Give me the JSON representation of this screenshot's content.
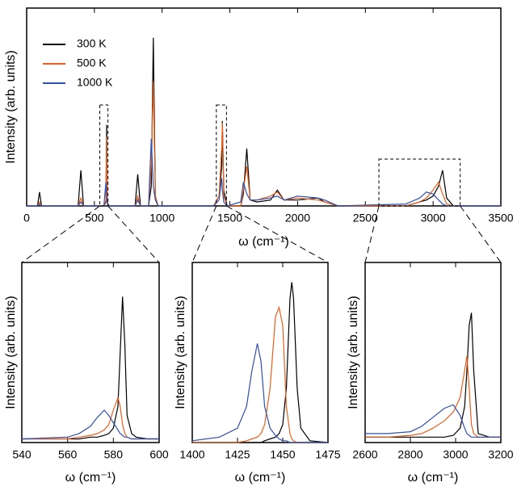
{
  "chart_data": [
    {
      "type": "line",
      "x_label": "ω (cm⁻¹)",
      "y_label": "Intensity (arb. units)",
      "legend": "upper left",
      "x": [
        0,
        80,
        95,
        110,
        380,
        400,
        420,
        570,
        585,
        590,
        595,
        610,
        800,
        820,
        840,
        900,
        920,
        935,
        950,
        970,
        1380,
        1420,
        1440,
        1445,
        1455,
        1480,
        1580,
        1600,
        1625,
        1650,
        1700,
        1800,
        1850,
        1900,
        2000,
        2150,
        2200,
        2300,
        2800,
        2900,
        2950,
        3000,
        3040,
        3070,
        3100,
        3150,
        3500
      ],
      "series": [
        {
          "name": "300 K",
          "color": "#000000",
          "values": [
            0,
            0,
            7,
            0,
            0,
            18,
            0,
            0,
            2,
            41,
            2,
            0,
            0,
            16,
            0,
            0,
            10,
            85,
            5,
            0,
            0,
            5,
            20,
            43,
            8,
            0,
            0,
            6,
            29,
            3,
            2,
            3,
            8,
            3,
            3,
            4,
            2,
            0,
            0,
            2,
            3,
            5,
            10,
            18,
            4,
            0,
            0
          ]
        },
        {
          "name": "500 K",
          "color": "#e8601c",
          "values": [
            0,
            0,
            2,
            0,
            0,
            4,
            0,
            0,
            3,
            35,
            2,
            0,
            0,
            5,
            0,
            0,
            20,
            63,
            5,
            0,
            0,
            5,
            30,
            42,
            5,
            0,
            0,
            8,
            20,
            3,
            3,
            5,
            7,
            3,
            4,
            3,
            2,
            0,
            0,
            2,
            4,
            8,
            12,
            6,
            1,
            0,
            0
          ]
        },
        {
          "name": "1000 K",
          "color": "#3050b0",
          "values": [
            0,
            0,
            1,
            0,
            0,
            2,
            0,
            0,
            12,
            5,
            1,
            0,
            0,
            3,
            0,
            0,
            34,
            10,
            3,
            0,
            0,
            3,
            14,
            8,
            2,
            0,
            2,
            12,
            6,
            3,
            3,
            4,
            5,
            3,
            5,
            4,
            3,
            0,
            1,
            4,
            7,
            6,
            3,
            1,
            0,
            0,
            0
          ]
        }
      ],
      "xlim": [
        0,
        3500
      ],
      "xticks": [
        0,
        500,
        1000,
        1500,
        2000,
        2500,
        3000,
        3500
      ],
      "ylim": [
        0,
        100
      ]
    },
    {
      "type": "line",
      "x_label": "ω (cm⁻¹)",
      "y_label": "Intensity (arb. units)",
      "x": [
        540,
        560,
        565,
        570,
        573,
        576,
        578,
        580,
        582,
        583,
        584,
        585,
        586,
        588,
        590,
        595,
        600
      ],
      "series": [
        {
          "color": "#000000",
          "values": [
            2,
            2,
            2,
            3,
            3,
            4,
            5,
            8,
            20,
            50,
            81,
            55,
            15,
            5,
            3,
            2,
            2
          ]
        },
        {
          "color": "#e8601c",
          "values": [
            2,
            2,
            3,
            4,
            5,
            7,
            10,
            18,
            25,
            20,
            10,
            5,
            3,
            2,
            2,
            2,
            2
          ]
        },
        {
          "color": "#3050b0",
          "values": [
            2,
            3,
            5,
            9,
            14,
            18,
            15,
            11,
            7,
            5,
            4,
            3,
            3,
            2,
            2,
            2,
            2
          ]
        }
      ],
      "xlim": [
        540,
        600
      ],
      "xticks": [
        540,
        560,
        580,
        600
      ],
      "ylim": [
        0,
        100
      ]
    },
    {
      "type": "line",
      "x_label": "ω (cm⁻¹)",
      "y_label": "Intensity (arb. units)",
      "x": [
        1400,
        1415,
        1425,
        1430,
        1433,
        1436,
        1438,
        1440,
        1443,
        1446,
        1448,
        1450,
        1452,
        1454,
        1455,
        1456,
        1458,
        1460,
        1465,
        1475
      ],
      "series": [
        {
          "color": "#000000",
          "values": [
            0,
            0,
            0,
            0,
            0,
            0,
            0,
            1,
            2,
            3,
            5,
            10,
            30,
            80,
            89,
            80,
            30,
            8,
            1,
            0
          ]
        },
        {
          "color": "#e8601c",
          "values": [
            0,
            0,
            0,
            1,
            2,
            3,
            5,
            10,
            30,
            70,
            75,
            65,
            20,
            5,
            2,
            1,
            0,
            0,
            0,
            0
          ]
        },
        {
          "color": "#3050b0",
          "values": [
            1,
            3,
            8,
            20,
            40,
            55,
            45,
            20,
            8,
            4,
            2,
            1,
            1,
            0,
            0,
            0,
            0,
            0,
            0,
            0
          ]
        }
      ],
      "xlim": [
        1400,
        1475
      ],
      "xticks": [
        1400,
        1425,
        1450,
        1475
      ],
      "ylim": [
        0,
        100
      ]
    },
    {
      "type": "line",
      "x_label": "ω (cm⁻¹)",
      "y_label": "Intensity (arb. units)",
      "x": [
        2600,
        2700,
        2800,
        2850,
        2900,
        2950,
        2990,
        3020,
        3040,
        3050,
        3060,
        3070,
        3080,
        3100,
        3150,
        3200
      ],
      "series": [
        {
          "color": "#000000",
          "values": [
            3,
            3,
            3,
            3,
            3,
            3,
            4,
            8,
            20,
            40,
            65,
            72,
            40,
            5,
            3,
            3
          ]
        },
        {
          "color": "#e8601c",
          "values": [
            3,
            3,
            4,
            5,
            8,
            12,
            17,
            25,
            40,
            48,
            30,
            10,
            5,
            3,
            3,
            3
          ]
        },
        {
          "color": "#3050b0",
          "values": [
            5,
            5,
            6,
            9,
            14,
            19,
            21,
            15,
            8,
            5,
            4,
            3,
            3,
            3,
            3,
            3
          ]
        }
      ],
      "xlim": [
        2600,
        3200
      ],
      "xticks": [
        2600,
        2800,
        3000,
        3200
      ],
      "ylim": [
        0,
        100
      ]
    }
  ]
}
